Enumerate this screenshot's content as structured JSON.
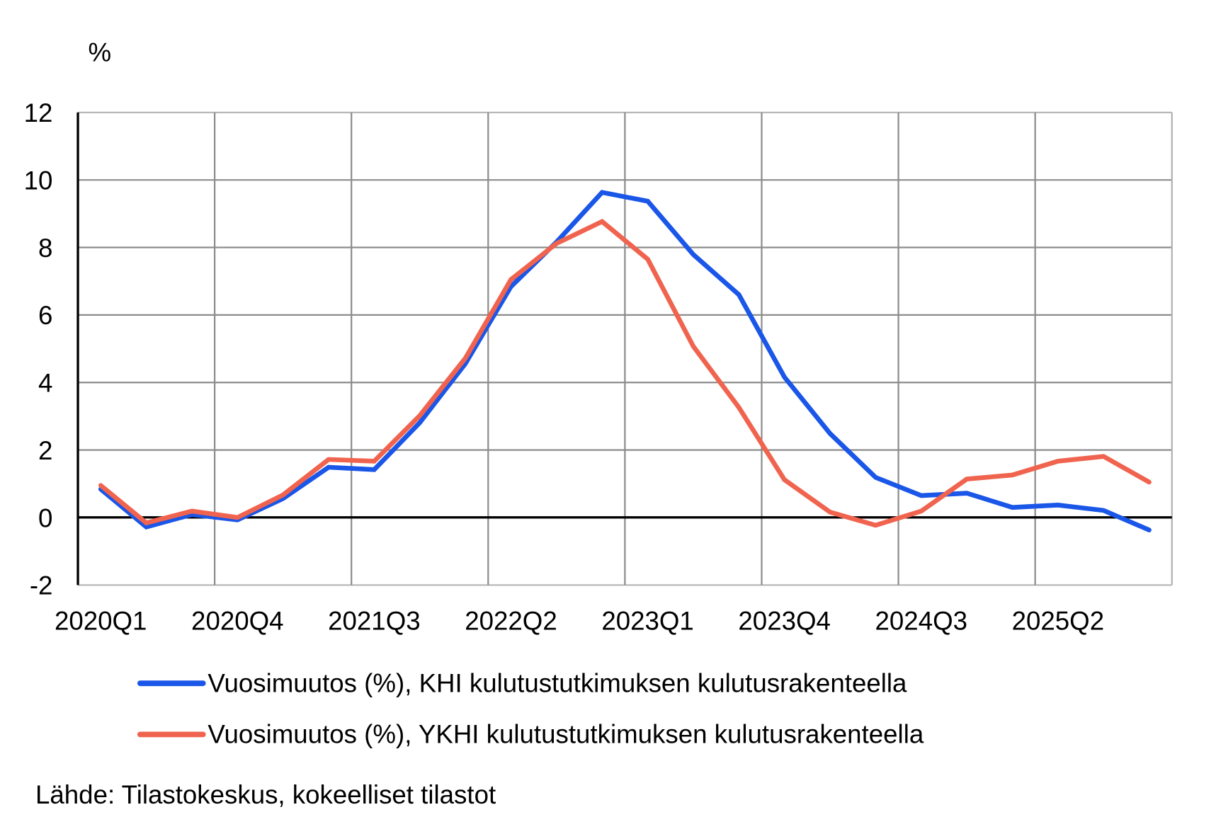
{
  "chart_data": {
    "type": "line",
    "title": "",
    "ylabel": "%",
    "xlabel": "",
    "ylim": [
      -2,
      12
    ],
    "yticks": [
      -2,
      0,
      2,
      4,
      6,
      8,
      10,
      12
    ],
    "grid": true,
    "legend_position": "bottom",
    "x": [
      "2020Q1",
      "2020Q2",
      "2020Q3",
      "2020Q4",
      "2021Q1",
      "2021Q2",
      "2021Q3",
      "2021Q4",
      "2022Q1",
      "2022Q2",
      "2022Q3",
      "2022Q4",
      "2023Q1",
      "2023Q2",
      "2023Q3",
      "2023Q4",
      "2024Q1",
      "2024Q2",
      "2024Q3",
      "2024Q4",
      "2025Q1",
      "2025Q2",
      "2025Q3",
      "2025Q4"
    ],
    "xtick_labels": [
      "2020Q1",
      "2020Q4",
      "2021Q3",
      "2022Q2",
      "2023Q1",
      "2023Q4",
      "2024Q3",
      "2025Q2"
    ],
    "series": [
      {
        "name": "Vuosimuutos (%), KHI kulutustutkimuksen kulutusrakenteella",
        "color": "#1a56e8",
        "values": [
          0.84,
          -0.28,
          0.09,
          -0.07,
          0.56,
          1.49,
          1.42,
          2.81,
          4.56,
          6.84,
          8.16,
          9.63,
          9.37,
          7.79,
          6.6,
          4.16,
          2.49,
          1.19,
          0.65,
          0.72,
          0.3,
          0.37,
          0.21,
          -0.37
        ]
      },
      {
        "name": "Vuosimuutos (%), YKHI kulutustutkimuksen kulutusrakenteella",
        "color": "#f0644f",
        "values": [
          0.95,
          -0.16,
          0.19,
          0.0,
          0.67,
          1.72,
          1.67,
          3.02,
          4.72,
          7.05,
          8.12,
          8.77,
          7.65,
          5.07,
          3.26,
          1.12,
          0.16,
          -0.23,
          0.19,
          1.14,
          1.26,
          1.67,
          1.81,
          1.05
        ]
      }
    ],
    "source": "Lähde: Tilastokeskus, kokeelliset tilastot"
  },
  "axis": {
    "unit_label": "%"
  },
  "legend": {
    "items": [
      {
        "label": "Vuosimuutos (%), KHI kulutustutkimuksen kulutusrakenteella",
        "color": "#1a56e8"
      },
      {
        "label": "Vuosimuutos (%), YKHI kulutustutkimuksen kulutusrakenteella",
        "color": "#f0644f"
      }
    ]
  },
  "footer": {
    "source": "Lähde: Tilastokeskus, kokeelliset tilastot"
  }
}
